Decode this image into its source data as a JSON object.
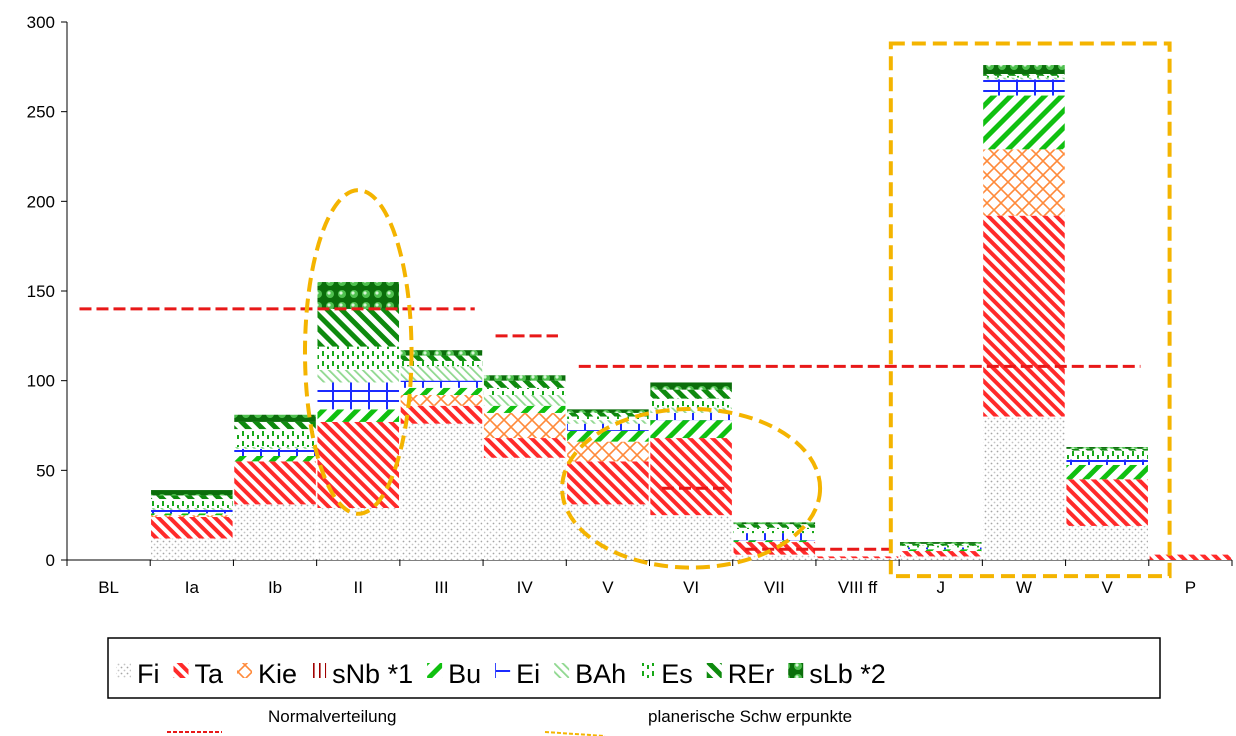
{
  "colors": {
    "Fi": "#bdbdbd",
    "Ta": "#ff2a2a",
    "Kie": "#ff8a3a",
    "sNb": "#a00000",
    "Bu": "#10c010",
    "Ei": "#1b2bff",
    "BAh": "#8fd88f",
    "Es": "#18a818",
    "REr": "#0e8a0e",
    "sLb": "#0b6e0b",
    "normal": "#e81818",
    "highlight": "#f4b400"
  },
  "notes": {
    "normal": "Normalverteilung",
    "planning": "planerische Schw erpunkte"
  },
  "chart_data": {
    "type": "bar",
    "stacked": true,
    "categories": [
      "BL",
      "Ia",
      "Ib",
      "II",
      "III",
      "IV",
      "V",
      "VI",
      "VII",
      "VIII ff",
      "J",
      "W",
      "V",
      "P"
    ],
    "ylim": [
      0,
      300
    ],
    "yticks": [
      0,
      50,
      100,
      150,
      200,
      250,
      300
    ],
    "grid": false,
    "legend_position": "bottom",
    "series": [
      {
        "name": "Fi",
        "values": [
          0,
          12,
          31,
          29,
          76,
          57,
          31,
          25,
          3,
          1,
          2,
          80,
          19,
          0
        ]
      },
      {
        "name": "Ta",
        "values": [
          0,
          12,
          24,
          48,
          10,
          11,
          24,
          43,
          7,
          1,
          3,
          112,
          26,
          3
        ]
      },
      {
        "name": "Kie",
        "values": [
          0,
          1,
          0,
          0,
          6,
          14,
          11,
          0,
          0,
          0,
          0,
          37,
          0,
          0
        ]
      },
      {
        "name": "sNb *1",
        "values": [
          0,
          0,
          0,
          0,
          0,
          0,
          0,
          0,
          0,
          0,
          0,
          0,
          0,
          0
        ]
      },
      {
        "name": "Bu",
        "values": [
          0,
          1,
          3,
          7,
          4,
          4,
          6,
          10,
          1,
          0,
          1,
          30,
          8,
          0
        ]
      },
      {
        "name": "Ei",
        "values": [
          0,
          2,
          4,
          15,
          4,
          0,
          4,
          4,
          4,
          0,
          1,
          9,
          3,
          0
        ]
      },
      {
        "name": "BAh",
        "values": [
          0,
          1,
          1,
          7,
          8,
          6,
          2,
          3,
          0,
          0,
          0,
          1,
          0,
          0
        ]
      },
      {
        "name": "Es",
        "values": [
          0,
          5,
          10,
          13,
          3,
          4,
          2,
          5,
          3,
          0,
          1,
          1,
          5,
          0
        ]
      },
      {
        "name": "REr",
        "values": [
          0,
          2,
          4,
          21,
          3,
          4,
          2,
          5,
          2,
          0,
          1,
          1,
          1,
          0
        ]
      },
      {
        "name": "sLb *2",
        "values": [
          0,
          3,
          4,
          15,
          3,
          3,
          2,
          4,
          1,
          0,
          1,
          5,
          1,
          0
        ]
      }
    ],
    "normal_distribution": [
      {
        "from": "BL",
        "to": "III",
        "value": 140
      },
      {
        "from": "IV",
        "to": "IV",
        "value": 125
      },
      {
        "from": "V",
        "to": "V",
        "value": 108
      },
      {
        "from": "VI",
        "to": "VI",
        "value": 40
      },
      {
        "from": "VII",
        "to": "VIII ff",
        "value": 6
      }
    ],
    "highlights": [
      {
        "shape": "ellipse",
        "categories": [
          "II"
        ]
      },
      {
        "shape": "ellipse",
        "categories": [
          "V",
          "VII"
        ]
      },
      {
        "shape": "rect",
        "categories": [
          "J",
          "P"
        ]
      }
    ]
  }
}
